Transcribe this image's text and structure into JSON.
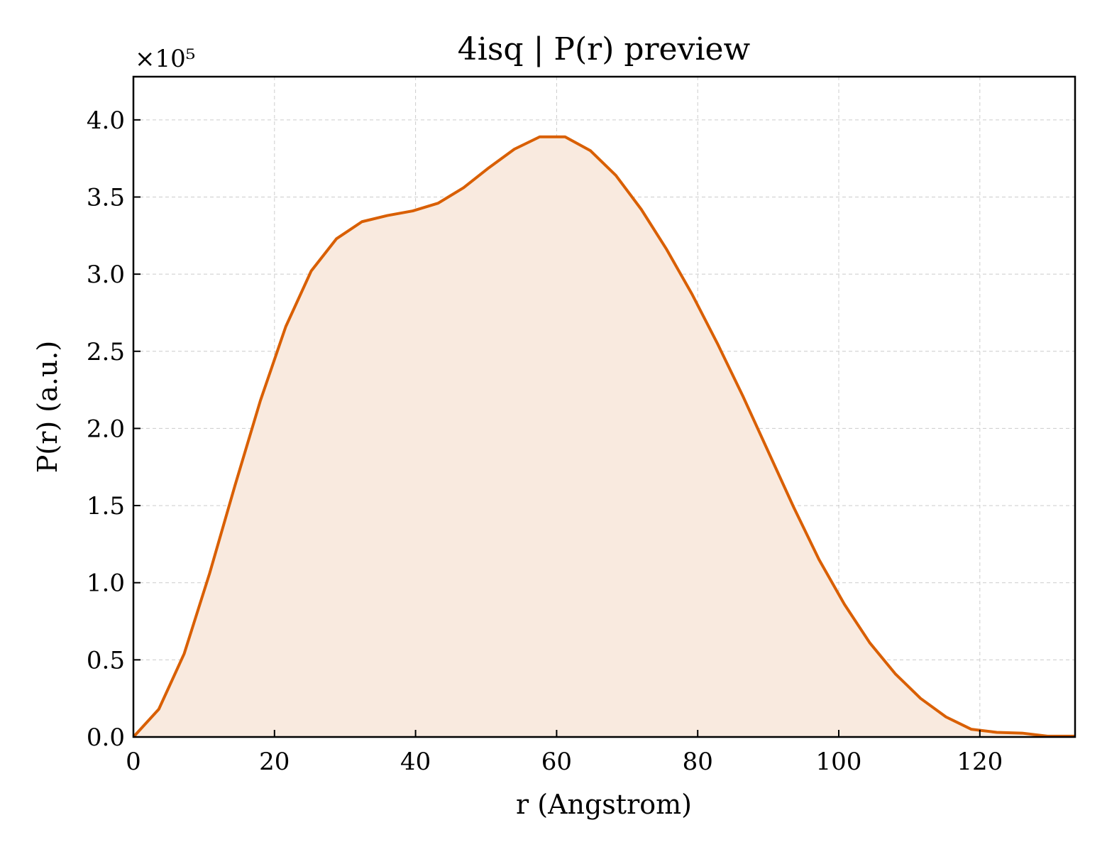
{
  "chart_data": {
    "type": "area",
    "title": "4isq | P(r) preview",
    "xlabel": "r (Angstrom)",
    "ylabel": "P(r) (a.u.)",
    "y_offset_label": "×10⁵",
    "y_scale": 100000,
    "xlim": [
      0,
      133.5
    ],
    "ylim": [
      0,
      428000
    ],
    "xticks": [
      0,
      20,
      40,
      60,
      80,
      100,
      120
    ],
    "xtick_labels": [
      "0",
      "20",
      "40",
      "60",
      "80",
      "100",
      "120"
    ],
    "yticks": [
      0,
      50000,
      100000,
      150000,
      200000,
      250000,
      300000,
      350000,
      400000
    ],
    "ytick_labels": [
      "0.0",
      "0.5",
      "1.0",
      "1.5",
      "2.0",
      "2.5",
      "3.0",
      "3.5",
      "4.0"
    ],
    "grid": true,
    "line_color": "#d95f02",
    "fill_color": "#f9eadf",
    "series": [
      {
        "x": [
          0,
          3.6,
          7.2,
          10.8,
          14.4,
          18.0,
          21.6,
          25.2,
          28.8,
          32.4,
          36.0,
          39.6,
          43.2,
          46.8,
          50.4,
          54.0,
          57.6,
          61.2,
          64.8,
          68.4,
          72.0,
          75.6,
          79.2,
          82.8,
          86.4,
          90.0,
          93.6,
          97.2,
          100.8,
          104.4,
          108.0,
          111.6,
          115.2,
          118.8,
          122.4,
          126.0,
          129.6,
          133.5
        ],
        "y": [
          0,
          18000,
          54000,
          106000,
          163000,
          218000,
          266000,
          302000,
          323000,
          334000,
          338000,
          341000,
          346000,
          356000,
          369000,
          381000,
          389000,
          389000,
          380000,
          364000,
          342000,
          316000,
          287000,
          255000,
          221000,
          185000,
          149000,
          115000,
          86000,
          61000,
          41000,
          25000,
          13000,
          5000,
          3000,
          2500,
          500,
          500
        ]
      }
    ]
  }
}
